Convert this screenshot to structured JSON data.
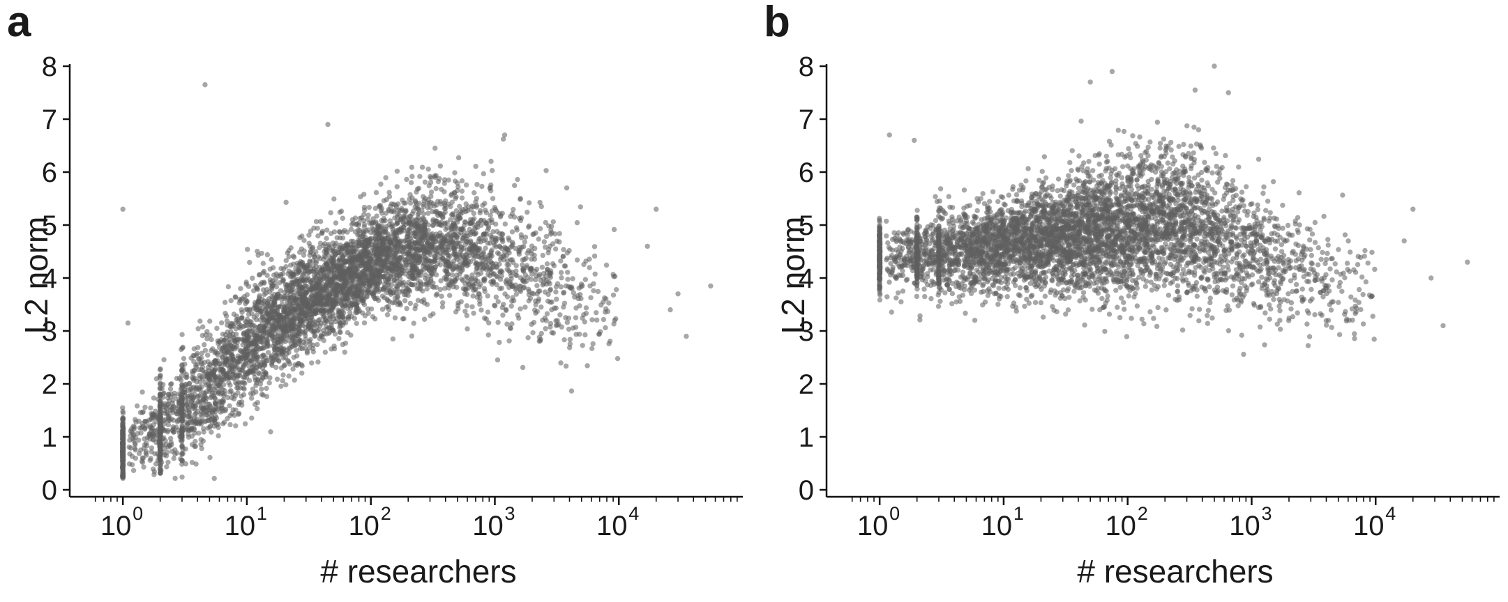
{
  "colors": {
    "point": "#5e5e5e",
    "axis": "#111111",
    "text": "#1a1a1a"
  },
  "chart_data": [
    {
      "panel_label": "a",
      "type": "scatter",
      "xlabel": "# researchers",
      "ylabel": "L2 norm",
      "xscale": "log",
      "xlim": [
        0.55,
        100000
      ],
      "ylim": [
        0,
        8
      ],
      "x_ticks": [
        {
          "value": 1,
          "base": "10",
          "exp": "0"
        },
        {
          "value": 10,
          "base": "10",
          "exp": "1"
        },
        {
          "value": 100,
          "base": "10",
          "exp": "2"
        },
        {
          "value": 1000,
          "base": "10",
          "exp": "3"
        },
        {
          "value": 10000,
          "base": "10",
          "exp": "4"
        }
      ],
      "y_ticks": [
        "0",
        "1",
        "2",
        "3",
        "4",
        "5",
        "6",
        "7",
        "8"
      ],
      "grid": false,
      "legend": "none",
      "point_alpha": 0.55,
      "trend": {
        "x": [
          1,
          2,
          5,
          10,
          30,
          100,
          300,
          1000,
          3000,
          10000,
          60000
        ],
        "y": [
          0.75,
          1.1,
          2.0,
          2.75,
          3.6,
          4.3,
          4.75,
          4.5,
          3.9,
          3.4,
          3.2
        ],
        "spread": [
          0.3,
          0.45,
          0.55,
          0.55,
          0.5,
          0.48,
          0.55,
          0.65,
          0.6,
          0.55,
          0.5
        ]
      },
      "n_points": 5200,
      "outliers": [
        {
          "x": 4.6,
          "y": 7.65
        },
        {
          "x": 1.0,
          "y": 5.3
        },
        {
          "x": 45,
          "y": 6.9
        },
        {
          "x": 20000,
          "y": 5.3
        },
        {
          "x": 17000,
          "y": 4.6
        },
        {
          "x": 55000,
          "y": 3.85
        },
        {
          "x": 35000,
          "y": 2.9
        },
        {
          "x": 26000,
          "y": 3.4
        },
        {
          "x": 30000,
          "y": 3.7
        },
        {
          "x": 1.1,
          "y": 3.15
        },
        {
          "x": 1200,
          "y": 6.7
        },
        {
          "x": 3800,
          "y": 5.7
        }
      ]
    },
    {
      "panel_label": "b",
      "type": "scatter",
      "xlabel": "# researchers",
      "ylabel": "L2 norm",
      "xscale": "log",
      "xlim": [
        0.55,
        100000
      ],
      "ylim": [
        0,
        8
      ],
      "x_ticks": [
        {
          "value": 1,
          "base": "10",
          "exp": "0"
        },
        {
          "value": 10,
          "base": "10",
          "exp": "1"
        },
        {
          "value": 100,
          "base": "10",
          "exp": "2"
        },
        {
          "value": 1000,
          "base": "10",
          "exp": "3"
        },
        {
          "value": 10000,
          "base": "10",
          "exp": "4"
        }
      ],
      "y_ticks": [
        "0",
        "1",
        "2",
        "3",
        "4",
        "5",
        "6",
        "7",
        "8"
      ],
      "grid": false,
      "legend": "none",
      "point_alpha": 0.55,
      "trend": {
        "x": [
          1,
          3,
          10,
          30,
          100,
          300,
          1000,
          3000,
          10000,
          60000
        ],
        "y": [
          4.4,
          4.45,
          4.6,
          4.8,
          5.0,
          5.0,
          4.5,
          4.0,
          3.7,
          3.5
        ],
        "spread": [
          0.3,
          0.38,
          0.45,
          0.55,
          0.65,
          0.7,
          0.6,
          0.55,
          0.5,
          0.45
        ]
      },
      "n_points": 5200,
      "outliers": [
        {
          "x": 50,
          "y": 7.7
        },
        {
          "x": 75,
          "y": 7.9
        },
        {
          "x": 500,
          "y": 8.0
        },
        {
          "x": 650,
          "y": 7.5
        },
        {
          "x": 350,
          "y": 7.55
        },
        {
          "x": 20000,
          "y": 5.3
        },
        {
          "x": 17000,
          "y": 4.7
        },
        {
          "x": 55000,
          "y": 4.3
        },
        {
          "x": 35000,
          "y": 3.1
        },
        {
          "x": 28000,
          "y": 4.0
        },
        {
          "x": 1.2,
          "y": 6.7
        },
        {
          "x": 1.9,
          "y": 6.6
        }
      ]
    }
  ]
}
